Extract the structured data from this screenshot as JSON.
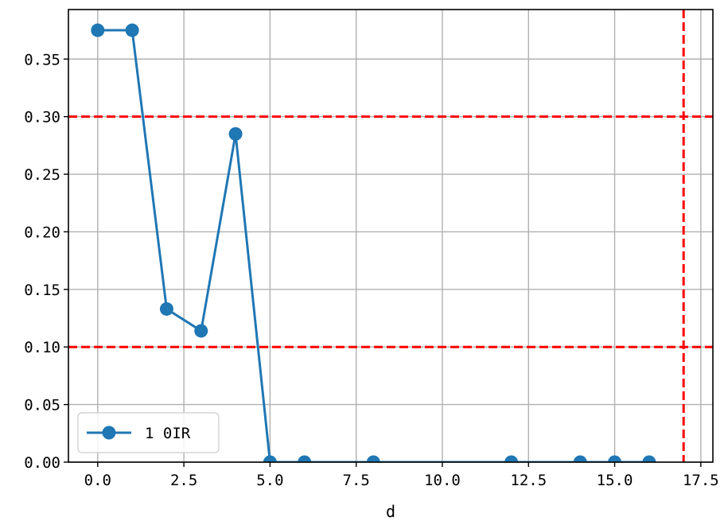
{
  "chart_data": {
    "type": "line",
    "title": "",
    "xlabel": "d",
    "ylabel": "",
    "xlim": [
      -0.85,
      17.85
    ],
    "ylim": [
      0.0,
      0.393
    ],
    "xticks": [
      0.0,
      2.5,
      5.0,
      7.5,
      10.0,
      12.5,
      15.0,
      17.5
    ],
    "xtick_labels": [
      "0.0",
      "2.5",
      "5.0",
      "7.5",
      "10.0",
      "12.5",
      "15.0",
      "17.5"
    ],
    "yticks": [
      0.0,
      0.05,
      0.1,
      0.15,
      0.2,
      0.25,
      0.3,
      0.35
    ],
    "ytick_labels": [
      "0.00",
      "0.05",
      "0.10",
      "0.15",
      "0.20",
      "0.25",
      "0.30",
      "0.35"
    ],
    "grid": true,
    "legend_position": "lower-left",
    "series": [
      {
        "name": "1 0IR",
        "color": "#1f77b4",
        "marker": "circle",
        "x": [
          0,
          1,
          2,
          3,
          4,
          5,
          6,
          8,
          12,
          14,
          15,
          16
        ],
        "y": [
          0.375,
          0.375,
          0.133,
          0.114,
          0.285,
          0.0,
          0.0,
          0.0,
          0.0,
          0.0,
          0.0,
          0.0
        ]
      }
    ],
    "reference_lines": [
      {
        "orientation": "horizontal",
        "value": 0.3,
        "color": "#ff0000",
        "style": "dashed"
      },
      {
        "orientation": "horizontal",
        "value": 0.1,
        "color": "#ff0000",
        "style": "dashed"
      },
      {
        "orientation": "vertical",
        "value": 17,
        "color": "#ff0000",
        "style": "dashed"
      }
    ]
  }
}
